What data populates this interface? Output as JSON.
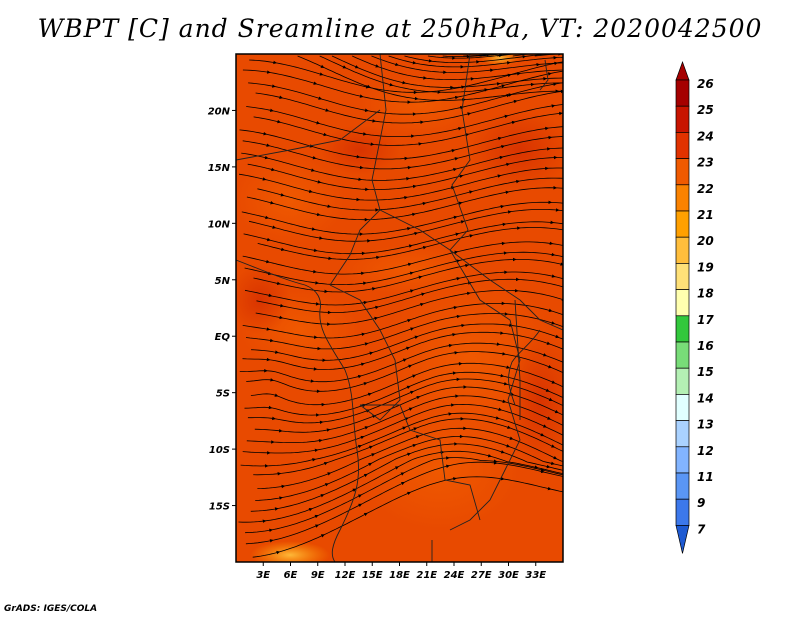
{
  "title": "WBPT [C] and Sreamline at 250hPa, VT: 2020042500",
  "credit": "GrADS: IGES/COLA",
  "map": {
    "lon_range": [
      0,
      36
    ],
    "lat_range": [
      -20,
      25
    ],
    "lon_ticks": [
      {
        "value": 3,
        "label": "3E"
      },
      {
        "value": 6,
        "label": "6E"
      },
      {
        "value": 9,
        "label": "9E"
      },
      {
        "value": 12,
        "label": "12E"
      },
      {
        "value": 15,
        "label": "15E"
      },
      {
        "value": 18,
        "label": "18E"
      },
      {
        "value": 21,
        "label": "21E"
      },
      {
        "value": 24,
        "label": "24E"
      },
      {
        "value": 27,
        "label": "27E"
      },
      {
        "value": 30,
        "label": "30E"
      },
      {
        "value": 33,
        "label": "33E"
      }
    ],
    "lat_ticks": [
      {
        "value": 20,
        "label": "20N"
      },
      {
        "value": 15,
        "label": "15N"
      },
      {
        "value": 10,
        "label": "10N"
      },
      {
        "value": 5,
        "label": "5N"
      },
      {
        "value": 0,
        "label": "EQ"
      },
      {
        "value": -5,
        "label": "5S"
      },
      {
        "value": -10,
        "label": "10S"
      },
      {
        "value": -15,
        "label": "15S"
      }
    ]
  },
  "colorbar": {
    "labels": [
      "26",
      "25",
      "24",
      "23",
      "22",
      "21",
      "20",
      "19",
      "18",
      "17",
      "16",
      "15",
      "14",
      "13",
      "12",
      "11",
      "9",
      "7"
    ],
    "colors": [
      "#a50000",
      "#c81400",
      "#e13200",
      "#f05a00",
      "#fa8200",
      "#ffa000",
      "#ffbe3c",
      "#ffe178",
      "#ffffaf",
      "#32c83c",
      "#78dc78",
      "#b4f0b4",
      "#e1ffff",
      "#aad2ff",
      "#82b4ff",
      "#5a96f5",
      "#3c78eb",
      "#1e5ad2"
    ]
  }
}
